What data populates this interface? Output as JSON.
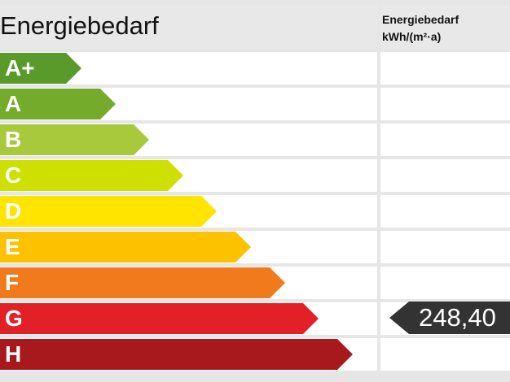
{
  "header": {
    "title": "Energiebedarf",
    "column_title_line1": "Energiebedarf",
    "column_title_line2": "kWh/(m²·a)"
  },
  "classes": [
    {
      "label": "A+",
      "color": "#5a9a2a"
    },
    {
      "label": "A",
      "color": "#74ab2a"
    },
    {
      "label": "B",
      "color": "#a9c93d"
    },
    {
      "label": "C",
      "color": "#cde000"
    },
    {
      "label": "D",
      "color": "#ffe400"
    },
    {
      "label": "E",
      "color": "#fcc200"
    },
    {
      "label": "F",
      "color": "#f07a1c"
    },
    {
      "label": "G",
      "color": "#e12027"
    },
    {
      "label": "H",
      "color": "#a8191e"
    }
  ],
  "current": {
    "class": "G",
    "value": "248,40",
    "marker_color": "#333333"
  }
}
